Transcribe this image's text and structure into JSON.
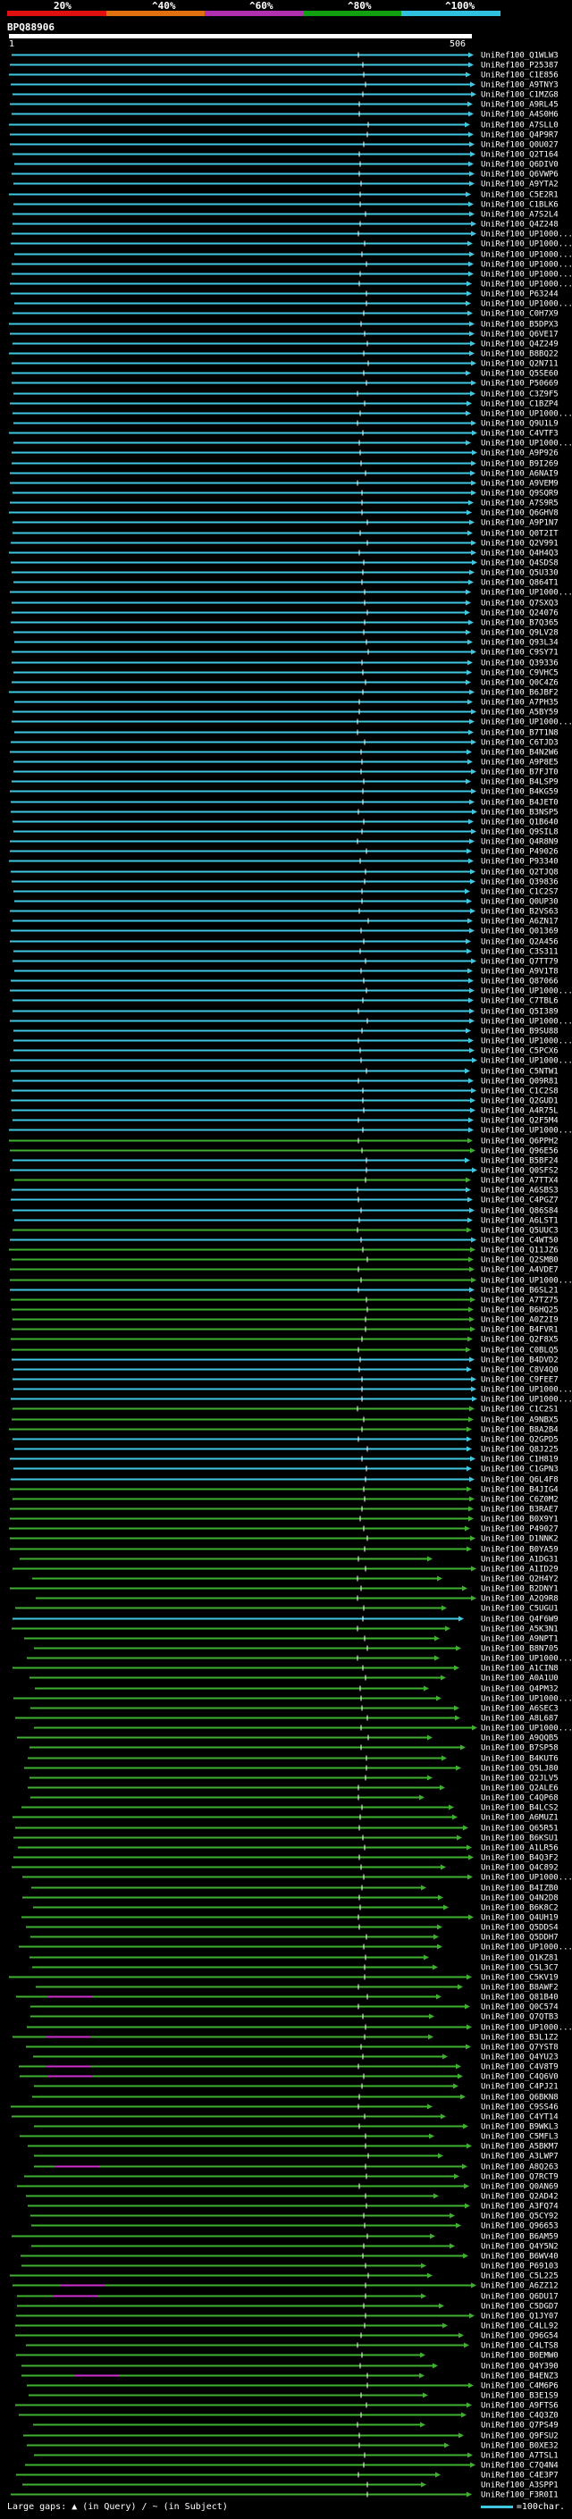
{
  "header": {
    "scale_labels": [
      "20%",
      "^40%",
      "^60%",
      "^80%",
      "^100%"
    ],
    "scale_colors": [
      "#e01010",
      "#e07010",
      "#b030b0",
      "#10a010",
      "#30c0e0"
    ],
    "query_name": "BPQ88906",
    "pos_start": "1",
    "pos_end": "506"
  },
  "footer": {
    "legend": "Large gaps: ▲ (in Query) / ~ (in Subject)",
    "scale_text": "=100char."
  },
  "colors": {
    "cyan": "#40c8e0",
    "green": "#40b030",
    "magenta": "#d030d0",
    "white": "#ffffff"
  },
  "chart_data": {
    "type": "alignment-overview",
    "title": "BPQ88906",
    "query_length": 506,
    "hits": [
      {
        "id": "UniRef100_Q1WLW3",
        "color": "cyan"
      },
      {
        "id": "UniRef100_P25387",
        "color": "cyan"
      },
      {
        "id": "UniRef100_C1E856",
        "color": "cyan"
      },
      {
        "id": "UniRef100_A9TNY3",
        "color": "cyan"
      },
      {
        "id": "UniRef100_C1MZG8",
        "color": "cyan"
      },
      {
        "id": "UniRef100_A9RL45",
        "color": "cyan"
      },
      {
        "id": "UniRef100_A4S0H6",
        "color": "cyan"
      },
      {
        "id": "UniRef100_A7SLL0",
        "color": "cyan"
      },
      {
        "id": "UniRef100_Q4P9R7",
        "color": "cyan"
      },
      {
        "id": "UniRef100_Q0U027",
        "color": "cyan"
      },
      {
        "id": "UniRef100_Q2T164",
        "color": "cyan"
      },
      {
        "id": "UniRef100_Q6DIV0",
        "color": "cyan"
      },
      {
        "id": "UniRef100_Q6VWP6",
        "color": "cyan"
      },
      {
        "id": "UniRef100_A9YTA2",
        "color": "cyan"
      },
      {
        "id": "UniRef100_C5E2R1",
        "color": "cyan"
      },
      {
        "id": "UniRef100_C1BLK6",
        "color": "cyan"
      },
      {
        "id": "UniRef100_A7S2L4",
        "color": "cyan"
      },
      {
        "id": "UniRef100_Q4Z248",
        "color": "cyan"
      },
      {
        "id": "UniRef100_UP1000...",
        "color": "cyan"
      },
      {
        "id": "UniRef100_UP1000...",
        "color": "cyan"
      },
      {
        "id": "UniRef100_UP1000...",
        "color": "cyan"
      },
      {
        "id": "UniRef100_UP1000...",
        "color": "cyan"
      },
      {
        "id": "UniRef100_UP1000...",
        "color": "cyan"
      },
      {
        "id": "UniRef100_UP1000...",
        "color": "cyan"
      },
      {
        "id": "UniRef100_P63244",
        "color": "cyan"
      },
      {
        "id": "UniRef100_UP1000...",
        "color": "cyan"
      },
      {
        "id": "UniRef100_C0H7X9",
        "color": "cyan"
      },
      {
        "id": "UniRef100_B5DPX3",
        "color": "cyan"
      },
      {
        "id": "UniRef100_Q6VE17",
        "color": "cyan"
      },
      {
        "id": "UniRef100_Q4Z249",
        "color": "cyan"
      },
      {
        "id": "UniRef100_B8BQ22",
        "color": "cyan"
      },
      {
        "id": "UniRef100_Q2N711",
        "color": "cyan"
      },
      {
        "id": "UniRef100_Q5SE60",
        "color": "cyan"
      },
      {
        "id": "UniRef100_P50669",
        "color": "cyan"
      },
      {
        "id": "UniRef100_C3Z9F5",
        "color": "cyan"
      },
      {
        "id": "UniRef100_C1BZP4",
        "color": "cyan"
      },
      {
        "id": "UniRef100_UP1000...",
        "color": "cyan"
      },
      {
        "id": "UniRef100_Q9U1L9",
        "color": "cyan"
      },
      {
        "id": "UniRef100_C4VTF3",
        "color": "cyan"
      },
      {
        "id": "UniRef100_UP1000...",
        "color": "cyan"
      },
      {
        "id": "UniRef100_A9P926",
        "color": "cyan"
      },
      {
        "id": "UniRef100_B9I269",
        "color": "cyan"
      },
      {
        "id": "UniRef100_A6NAI9",
        "color": "cyan"
      },
      {
        "id": "UniRef100_A9VEM9",
        "color": "cyan"
      },
      {
        "id": "UniRef100_Q9SQR9",
        "color": "cyan"
      },
      {
        "id": "UniRef100_A7S9R5",
        "color": "cyan"
      },
      {
        "id": "UniRef100_Q6GHV8",
        "color": "cyan"
      },
      {
        "id": "UniRef100_A9P1N7",
        "color": "cyan"
      },
      {
        "id": "UniRef100_Q0T2IT",
        "color": "cyan"
      },
      {
        "id": "UniRef100_Q2V991",
        "color": "cyan"
      },
      {
        "id": "UniRef100_Q4H4Q3",
        "color": "cyan"
      },
      {
        "id": "UniRef100_Q4SDS8",
        "color": "cyan"
      },
      {
        "id": "UniRef100_Q5U330",
        "color": "cyan"
      },
      {
        "id": "UniRef100_Q864T1",
        "color": "cyan"
      },
      {
        "id": "UniRef100_UP1000...",
        "color": "cyan"
      },
      {
        "id": "UniRef100_Q7SXQ3",
        "color": "cyan"
      },
      {
        "id": "UniRef100_Q24076",
        "color": "cyan"
      },
      {
        "id": "UniRef100_B7Q365",
        "color": "cyan"
      },
      {
        "id": "UniRef100_Q9LV28",
        "color": "cyan"
      },
      {
        "id": "UniRef100_Q93L34",
        "color": "cyan"
      },
      {
        "id": "UniRef100_C9SY71",
        "color": "cyan"
      },
      {
        "id": "UniRef100_Q39336",
        "color": "cyan"
      },
      {
        "id": "UniRef100_C9VHC5",
        "color": "cyan"
      },
      {
        "id": "UniRef100_Q0C4Z6",
        "color": "cyan"
      },
      {
        "id": "UniRef100_B6JBF2",
        "color": "cyan"
      },
      {
        "id": "UniRef100_A7PH35",
        "color": "cyan"
      },
      {
        "id": "UniRef100_A5BY59",
        "color": "cyan"
      },
      {
        "id": "UniRef100_UP1000...",
        "color": "cyan"
      },
      {
        "id": "UniRef100_B7T1N8",
        "color": "cyan"
      },
      {
        "id": "UniRef100_C6TJD3",
        "color": "cyan"
      },
      {
        "id": "UniRef100_B4N2W6",
        "color": "cyan"
      },
      {
        "id": "UniRef100_A9P8E5",
        "color": "cyan"
      },
      {
        "id": "UniRef100_B7FJT0",
        "color": "cyan"
      },
      {
        "id": "UniRef100_B4LSP9",
        "color": "cyan"
      },
      {
        "id": "UniRef100_B4KG59",
        "color": "cyan"
      },
      {
        "id": "UniRef100_B4JET0",
        "color": "cyan"
      },
      {
        "id": "UniRef100_B3NSP5",
        "color": "cyan"
      },
      {
        "id": "UniRef100_Q1B640",
        "color": "cyan"
      },
      {
        "id": "UniRef100_Q9SIL8",
        "color": "cyan"
      },
      {
        "id": "UniRef100_Q4R8N9",
        "color": "cyan"
      },
      {
        "id": "UniRef100_P49026",
        "color": "cyan"
      },
      {
        "id": "UniRef100_P93340",
        "color": "cyan"
      },
      {
        "id": "UniRef100_Q2TJQ8",
        "color": "cyan"
      },
      {
        "id": "UniRef100_Q39836",
        "color": "cyan"
      },
      {
        "id": "UniRef100_C1C2S7",
        "color": "cyan"
      },
      {
        "id": "UniRef100_Q0UP30",
        "color": "cyan"
      },
      {
        "id": "UniRef100_B2VS63",
        "color": "cyan"
      },
      {
        "id": "UniRef100_A6ZN17",
        "color": "cyan"
      },
      {
        "id": "UniRef100_Q01369",
        "color": "cyan"
      },
      {
        "id": "UniRef100_Q2A456",
        "color": "cyan"
      },
      {
        "id": "UniRef100_C3S311",
        "color": "cyan"
      },
      {
        "id": "UniRef100_Q7TT79",
        "color": "cyan"
      },
      {
        "id": "UniRef100_A9V1T8",
        "color": "cyan"
      },
      {
        "id": "UniRef100_Q87066",
        "color": "cyan"
      },
      {
        "id": "UniRef100_UP1000...",
        "color": "cyan"
      },
      {
        "id": "UniRef100_C7TBL6",
        "color": "cyan"
      },
      {
        "id": "UniRef100_Q5I389",
        "color": "cyan"
      },
      {
        "id": "UniRef100_UP1000...",
        "color": "cyan"
      },
      {
        "id": "UniRef100_B9SU88",
        "color": "cyan"
      },
      {
        "id": "UniRef100_UP1000...",
        "color": "cyan"
      },
      {
        "id": "UniRef100_C5PCX6",
        "color": "cyan"
      },
      {
        "id": "UniRef100_UP1000...",
        "color": "cyan"
      },
      {
        "id": "UniRef100_C5NTW1",
        "color": "cyan"
      },
      {
        "id": "UniRef100_Q09R81",
        "color": "cyan"
      },
      {
        "id": "UniRef100_C1C2S8",
        "color": "cyan"
      },
      {
        "id": "UniRef100_Q2GUD1",
        "color": "cyan"
      },
      {
        "id": "UniRef100_A4R75L",
        "color": "cyan"
      },
      {
        "id": "UniRef100_Q2F5M4",
        "color": "cyan"
      },
      {
        "id": "UniRef100_UP1000...",
        "color": "cyan"
      },
      {
        "id": "UniRef100_Q6PPH2",
        "color": "green"
      },
      {
        "id": "UniRef100_Q96E56",
        "color": "green"
      },
      {
        "id": "UniRef100_B5BF24",
        "color": "cyan"
      },
      {
        "id": "UniRef100_Q0SFS2",
        "color": "cyan"
      },
      {
        "id": "UniRef100_A7TTX4",
        "color": "green"
      },
      {
        "id": "UniRef100_A6SBS3",
        "color": "cyan"
      },
      {
        "id": "UniRef100_C4PGZ7",
        "color": "cyan"
      },
      {
        "id": "UniRef100_Q86S84",
        "color": "cyan"
      },
      {
        "id": "UniRef100_A6LST1",
        "color": "cyan"
      },
      {
        "id": "UniRef100_Q5UUC3",
        "color": "green"
      },
      {
        "id": "UniRef100_C4WT50",
        "color": "cyan"
      },
      {
        "id": "UniRef100_Q11JZ6",
        "color": "green"
      },
      {
        "id": "UniRef100_Q2SMB0",
        "color": "green"
      },
      {
        "id": "UniRef100_A4VDE7",
        "color": "green"
      },
      {
        "id": "UniRef100_UP1000...",
        "color": "green"
      },
      {
        "id": "UniRef100_B6SL21",
        "color": "cyan"
      },
      {
        "id": "UniRef100_A7TZ75",
        "color": "green"
      },
      {
        "id": "UniRef100_B6HQ25",
        "color": "green"
      },
      {
        "id": "UniRef100_A0Z2I9",
        "color": "green"
      },
      {
        "id": "UniRef100_B4FVR1",
        "color": "green"
      },
      {
        "id": "UniRef100_Q2F8X5",
        "color": "green"
      },
      {
        "id": "UniRef100_C0BLQ5",
        "color": "green"
      },
      {
        "id": "UniRef100_B4DVD2",
        "color": "cyan"
      },
      {
        "id": "UniRef100_C8V4Q0",
        "color": "cyan"
      },
      {
        "id": "UniRef100_C9FEE7",
        "color": "cyan"
      },
      {
        "id": "UniRef100_UP1000...",
        "color": "cyan"
      },
      {
        "id": "UniRef100_UP1000...",
        "color": "cyan"
      },
      {
        "id": "UniRef100_C1C2S1",
        "color": "green"
      },
      {
        "id": "UniRef100_A9NBX5",
        "color": "green"
      },
      {
        "id": "UniRef100_B8A2B4",
        "color": "green"
      },
      {
        "id": "UniRef100_Q2GPD5",
        "color": "cyan"
      },
      {
        "id": "UniRef100_Q8J225",
        "color": "cyan"
      },
      {
        "id": "UniRef100_C1H819",
        "color": "cyan"
      },
      {
        "id": "UniRef100_C1GPN3",
        "color": "cyan"
      },
      {
        "id": "UniRef100_Q6L4F8",
        "color": "cyan"
      },
      {
        "id": "UniRef100_B4JIG4",
        "color": "green"
      },
      {
        "id": "UniRef100_C6Z0M2",
        "color": "green"
      },
      {
        "id": "UniRef100_B3RAE7",
        "color": "green"
      },
      {
        "id": "UniRef100_B0X9Y1",
        "color": "green"
      },
      {
        "id": "UniRef100_P49027",
        "color": "green"
      },
      {
        "id": "UniRef100_D1NNK2",
        "color": "green"
      },
      {
        "id": "UniRef100_B0YA59",
        "color": "green"
      },
      {
        "id": "UniRef100_A1DG31",
        "color": "green"
      },
      {
        "id": "UniRef100_A1ID29",
        "color": "green"
      },
      {
        "id": "UniRef100_Q2H4Y2",
        "color": "green"
      },
      {
        "id": "UniRef100_B2DNY1",
        "color": "green"
      },
      {
        "id": "UniRef100_A2Q9R8",
        "color": "green"
      },
      {
        "id": "UniRef100_C5UGU1",
        "color": "green"
      },
      {
        "id": "UniRef100_Q4F6W9",
        "color": "cyan"
      },
      {
        "id": "UniRef100_A5K3N1",
        "color": "green"
      },
      {
        "id": "UniRef100_A9NPT1",
        "color": "green"
      },
      {
        "id": "UniRef100_B8N705",
        "color": "green"
      },
      {
        "id": "UniRef100_UP1000...",
        "color": "green"
      },
      {
        "id": "UniRef100_A1CIN8",
        "color": "green"
      },
      {
        "id": "UniRef100_A0A1U0",
        "color": "green"
      },
      {
        "id": "UniRef100_Q4PM32",
        "color": "green"
      },
      {
        "id": "UniRef100_UP1000...",
        "color": "green"
      },
      {
        "id": "UniRef100_A6SEC3",
        "color": "green"
      },
      {
        "id": "UniRef100_A8L687",
        "color": "green"
      },
      {
        "id": "UniRef100_UP1000...",
        "color": "green"
      },
      {
        "id": "UniRef100_A9QQB5",
        "color": "green"
      },
      {
        "id": "UniRef100_B7SP58",
        "color": "green"
      },
      {
        "id": "UniRef100_B4KUT6",
        "color": "green"
      },
      {
        "id": "UniRef100_Q5LJ80",
        "color": "green"
      },
      {
        "id": "UniRef100_Q2JLV5",
        "color": "green"
      },
      {
        "id": "UniRef100_Q2ALE6",
        "color": "green"
      },
      {
        "id": "UniRef100_C4QP68",
        "color": "green"
      },
      {
        "id": "UniRef100_B4LCS2",
        "color": "green"
      },
      {
        "id": "UniRef100_A6MUZ1",
        "color": "green"
      },
      {
        "id": "UniRef100_Q65R51",
        "color": "green"
      },
      {
        "id": "UniRef100_B6KSU1",
        "color": "green"
      },
      {
        "id": "UniRef100_A1LR56",
        "color": "green"
      },
      {
        "id": "UniRef100_B4Q3F2",
        "color": "green"
      },
      {
        "id": "UniRef100_Q4C892",
        "color": "green"
      },
      {
        "id": "UniRef100_UP1000...",
        "color": "green"
      },
      {
        "id": "UniRef100_B4IZB0",
        "color": "green"
      },
      {
        "id": "UniRef100_Q4N2D8",
        "color": "green"
      },
      {
        "id": "UniRef100_B6K8C2",
        "color": "green"
      },
      {
        "id": "UniRef100_Q4UH19",
        "color": "green"
      },
      {
        "id": "UniRef100_Q5DDS4",
        "color": "green"
      },
      {
        "id": "UniRef100_Q5DDH7",
        "color": "green"
      },
      {
        "id": "UniRef100_UP1000...",
        "color": "green"
      },
      {
        "id": "UniRef100_Q1KZ81",
        "color": "green"
      },
      {
        "id": "UniRef100_C5L3C7",
        "color": "green"
      },
      {
        "id": "UniRef100_C5KV19",
        "color": "green"
      },
      {
        "id": "UniRef100_B8AWF2",
        "color": "green"
      },
      {
        "id": "UniRef100_Q81B40",
        "color": "green"
      },
      {
        "id": "UniRef100_Q0C574",
        "color": "green"
      },
      {
        "id": "UniRef100_Q7QTB3",
        "color": "green"
      },
      {
        "id": "UniRef100_UP1000...",
        "color": "green"
      },
      {
        "id": "UniRef100_B3L1Z2",
        "color": "green"
      },
      {
        "id": "UniRef100_Q7YST8",
        "color": "green"
      },
      {
        "id": "UniRef100_Q4YU23",
        "color": "green"
      },
      {
        "id": "UniRef100_C4V8T9",
        "color": "green"
      },
      {
        "id": "UniRef100_C4Q6V0",
        "color": "green"
      },
      {
        "id": "UniRef100_C4PJ21",
        "color": "green"
      },
      {
        "id": "UniRef100_Q6BKN8",
        "color": "green"
      },
      {
        "id": "UniRef100_C9SS46",
        "color": "green"
      },
      {
        "id": "UniRef100_C4YT14",
        "color": "green"
      },
      {
        "id": "UniRef100_B9WKL3",
        "color": "green"
      },
      {
        "id": "UniRef100_C5MFL3",
        "color": "green"
      },
      {
        "id": "UniRef100_A5BKM7",
        "color": "green"
      },
      {
        "id": "UniRef100_A3LWP7",
        "color": "green"
      },
      {
        "id": "UniRef100_A8Q263",
        "color": "green"
      },
      {
        "id": "UniRef100_Q7RCT9",
        "color": "green"
      },
      {
        "id": "UniRef100_Q0AN69",
        "color": "green"
      },
      {
        "id": "UniRef100_Q2AD42",
        "color": "green"
      },
      {
        "id": "UniRef100_A3FQ74",
        "color": "green"
      },
      {
        "id": "UniRef100_Q5CY92",
        "color": "green"
      },
      {
        "id": "UniRef100_Q96653",
        "color": "green"
      },
      {
        "id": "UniRef100_B6AM59",
        "color": "green"
      },
      {
        "id": "UniRef100_Q4Y5N2",
        "color": "green"
      },
      {
        "id": "UniRef100_B6WV40",
        "color": "green"
      },
      {
        "id": "UniRef100_P69103",
        "color": "green"
      },
      {
        "id": "UniRef100_C5L225",
        "color": "green"
      },
      {
        "id": "UniRef100_A6ZZ12",
        "color": "green"
      },
      {
        "id": "UniRef100_Q6DU17",
        "color": "green"
      },
      {
        "id": "UniRef100_C5DGD7",
        "color": "green"
      },
      {
        "id": "UniRef100_Q1JY07",
        "color": "green"
      },
      {
        "id": "UniRef100_C4LL92",
        "color": "green"
      },
      {
        "id": "UniRef100_Q96G54",
        "color": "green"
      },
      {
        "id": "UniRef100_C4LTS8",
        "color": "green"
      },
      {
        "id": "UniRef100_B0EMW0",
        "color": "green"
      },
      {
        "id": "UniRef100_Q4Y390",
        "color": "green"
      },
      {
        "id": "UniRef100_B4ENZ3",
        "color": "green"
      },
      {
        "id": "UniRef100_C4M6P6",
        "color": "green"
      },
      {
        "id": "UniRef100_B3E1S9",
        "color": "green"
      },
      {
        "id": "UniRef100_A9FTS6",
        "color": "green"
      },
      {
        "id": "UniRef100_C4Q3Z0",
        "color": "green"
      },
      {
        "id": "UniRef100_Q7PS49",
        "color": "green"
      },
      {
        "id": "UniRef100_Q9FSU2",
        "color": "green"
      },
      {
        "id": "UniRef100_B0XE32",
        "color": "green"
      },
      {
        "id": "UniRef100_A7TSL1",
        "color": "green"
      },
      {
        "id": "UniRef100_C7Q4N4",
        "color": "green"
      },
      {
        "id": "UniRef100_C4E3P7",
        "color": "green"
      },
      {
        "id": "UniRef100_A3SPP1",
        "color": "green"
      },
      {
        "id": "UniRef100_F3R0I1",
        "color": "green"
      }
    ]
  }
}
